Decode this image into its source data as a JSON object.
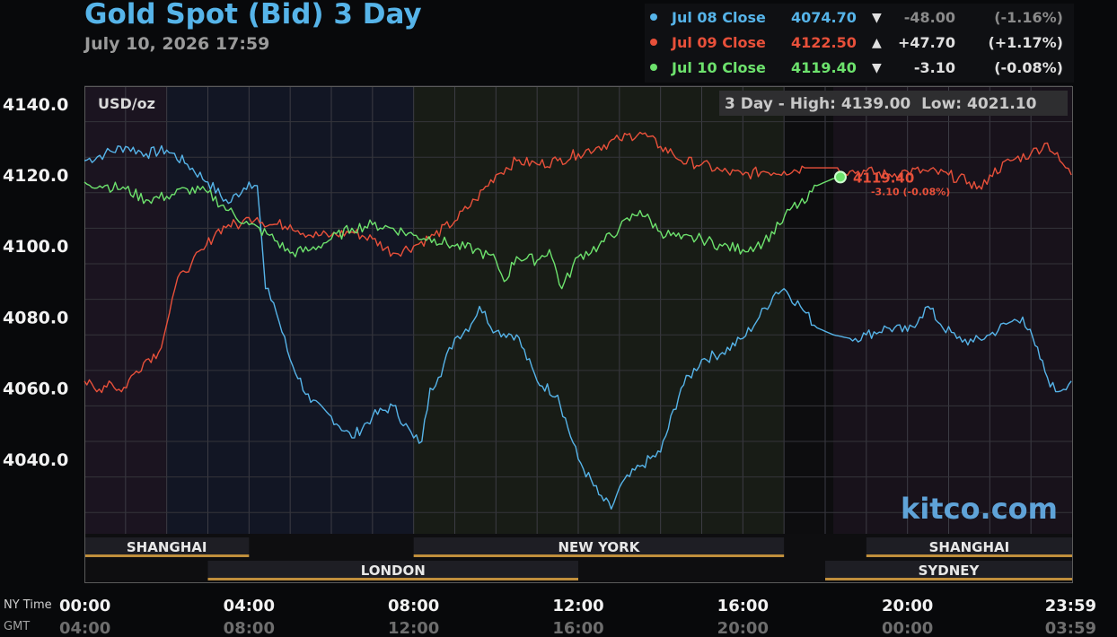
{
  "header": {
    "title": "Gold Spot (Bid) 3 Day",
    "subtitle": "July 10, 2026 17:59"
  },
  "legend": [
    {
      "label": "Jul 08 Close",
      "value": "4074.70",
      "arrow": "▼",
      "change": "-48.00",
      "pct": "(-1.16%)",
      "color": "#56b4e9",
      "muted": true
    },
    {
      "label": "Jul 09 Close",
      "value": "4122.50",
      "arrow": "▲",
      "change": "+47.70",
      "pct": "(+1.17%)",
      "color": "#e8503a",
      "muted": false
    },
    {
      "label": "Jul 10 Close",
      "value": "4119.40",
      "arrow": "▼",
      "change": "-3.10",
      "pct": "(-0.08%)",
      "color": "#6de26d",
      "muted": false
    }
  ],
  "chart_data": {
    "type": "line",
    "unit_label": "USD/oz",
    "range_label": "3 Day - High: 4139.00  Low: 4021.10",
    "watermark": "kitco.com",
    "last_label": "4119.40",
    "last_change": "-3.10 (-0.08%)",
    "ylim": [
      4019,
      4145
    ],
    "yticks": [
      4140,
      4120,
      4100,
      4080,
      4060,
      4040
    ],
    "ytick_labels": [
      "4140.0",
      "4120.0",
      "4100.0",
      "4080.0",
      "4060.0",
      "4040.0"
    ],
    "xlim": [
      0,
      24
    ],
    "xticks": [
      0,
      4,
      8,
      12,
      16,
      20,
      23.983
    ],
    "ny_time_label": "NY Time",
    "gmt_label": "GMT",
    "ny_labels": [
      "00:00",
      "04:00",
      "08:00",
      "12:00",
      "16:00",
      "20:00",
      "23:59"
    ],
    "gmt_labels": [
      "04:00",
      "08:00",
      "12:00",
      "16:00",
      "20:00",
      "00:00",
      "03:59"
    ],
    "sessions": [
      {
        "name": "SHANGHAI",
        "start": 0,
        "end": 4,
        "row": 0
      },
      {
        "name": "NEW YORK",
        "start": 8,
        "end": 17,
        "row": 0
      },
      {
        "name": "SHANGHAI",
        "start": 19,
        "end": 24,
        "row": 0
      },
      {
        "name": "LONDON",
        "start": 3,
        "end": 12,
        "row": 1
      },
      {
        "name": "SYDNEY",
        "start": 18,
        "end": 24,
        "row": 1
      }
    ],
    "series": [
      {
        "name": "Jul 08 Close",
        "color": "#56b4e9",
        "points": [
          [
            0,
            4124
          ],
          [
            0.5,
            4126
          ],
          [
            1,
            4128
          ],
          [
            1.5,
            4126
          ],
          [
            2,
            4127
          ],
          [
            2.5,
            4123
          ],
          [
            3,
            4118
          ],
          [
            3.5,
            4112
          ],
          [
            4,
            4118
          ],
          [
            4.2,
            4117
          ],
          [
            4.4,
            4088
          ],
          [
            4.6,
            4084
          ],
          [
            5,
            4068
          ],
          [
            5.5,
            4056
          ],
          [
            6,
            4052
          ],
          [
            6.5,
            4046
          ],
          [
            7,
            4052
          ],
          [
            7.5,
            4055
          ],
          [
            8,
            4046
          ],
          [
            8.2,
            4045
          ],
          [
            8.4,
            4060
          ],
          [
            8.6,
            4063
          ],
          [
            9,
            4074
          ],
          [
            9.4,
            4078
          ],
          [
            9.6,
            4083
          ],
          [
            10,
            4076
          ],
          [
            10.5,
            4075
          ],
          [
            11,
            4062
          ],
          [
            11.5,
            4058
          ],
          [
            12,
            4040
          ],
          [
            12.5,
            4030
          ],
          [
            12.8,
            4026
          ],
          [
            13,
            4032
          ],
          [
            13.5,
            4038
          ],
          [
            14,
            4042
          ],
          [
            14.5,
            4060
          ],
          [
            15,
            4068
          ],
          [
            15.5,
            4070
          ],
          [
            16,
            4074
          ],
          [
            16.4,
            4080
          ],
          [
            16.8,
            4087
          ],
          [
            17,
            4088
          ],
          [
            17.4,
            4083
          ],
          [
            17.8,
            4077
          ],
          [
            18.2,
            4075
          ],
          [
            18.6,
            4074
          ],
          [
            19,
            4075
          ],
          [
            19.5,
            4077
          ],
          [
            20,
            4076
          ],
          [
            20.3,
            4080
          ],
          [
            20.5,
            4083
          ],
          [
            20.8,
            4078
          ],
          [
            21.2,
            4074
          ],
          [
            21.6,
            4073
          ],
          [
            22,
            4075
          ],
          [
            22.4,
            4078
          ],
          [
            22.8,
            4080
          ],
          [
            23.1,
            4072
          ],
          [
            23.4,
            4063
          ],
          [
            23.6,
            4059
          ],
          [
            23.98,
            4062
          ]
        ]
      },
      {
        "name": "Jul 09 Close",
        "color": "#e8503a",
        "points": [
          [
            0,
            4062
          ],
          [
            0.3,
            4059
          ],
          [
            0.6,
            4062
          ],
          [
            0.9,
            4059
          ],
          [
            1.2,
            4064
          ],
          [
            1.5,
            4068
          ],
          [
            1.8,
            4070
          ],
          [
            2,
            4078
          ],
          [
            2.2,
            4088
          ],
          [
            2.4,
            4093
          ],
          [
            2.6,
            4095
          ],
          [
            2.9,
            4099
          ],
          [
            3.2,
            4104
          ],
          [
            3.5,
            4106
          ],
          [
            3.8,
            4106
          ],
          [
            4,
            4108
          ],
          [
            4.2,
            4108
          ],
          [
            4.5,
            4106
          ],
          [
            5,
            4106
          ],
          [
            5.5,
            4103
          ],
          [
            6,
            4103
          ],
          [
            6.5,
            4104
          ],
          [
            7,
            4102
          ],
          [
            7.5,
            4098
          ],
          [
            8,
            4100
          ],
          [
            8.5,
            4103
          ],
          [
            9,
            4107
          ],
          [
            9.5,
            4113
          ],
          [
            10,
            4120
          ],
          [
            10.5,
            4124
          ],
          [
            11,
            4123
          ],
          [
            11.5,
            4124
          ],
          [
            12,
            4126
          ],
          [
            12.5,
            4128
          ],
          [
            13,
            4130
          ],
          [
            13.5,
            4132
          ],
          [
            14,
            4128
          ],
          [
            14.3,
            4126
          ],
          [
            14.5,
            4124
          ],
          [
            15,
            4123
          ],
          [
            15.5,
            4121
          ],
          [
            16,
            4120
          ],
          [
            16.5,
            4121
          ],
          [
            17,
            4121
          ],
          [
            17.5,
            4122
          ],
          [
            18,
            4122
          ],
          [
            18.3,
            4122
          ],
          [
            18.6,
            4121
          ],
          [
            19,
            4121
          ],
          [
            19.5,
            4120
          ],
          [
            20,
            4121
          ],
          [
            20.5,
            4121
          ],
          [
            21,
            4120
          ],
          [
            21.5,
            4118
          ],
          [
            21.8,
            4116
          ],
          [
            22,
            4120
          ],
          [
            22.5,
            4124
          ],
          [
            23,
            4126
          ],
          [
            23.4,
            4129
          ],
          [
            23.7,
            4124
          ],
          [
            23.98,
            4120
          ]
        ]
      },
      {
        "name": "Jul 10 Close",
        "color": "#6de26d",
        "points": [
          [
            0,
            4118
          ],
          [
            0.5,
            4117
          ],
          [
            1,
            4116
          ],
          [
            1.5,
            4113
          ],
          [
            2,
            4114
          ],
          [
            2.5,
            4116
          ],
          [
            3,
            4115
          ],
          [
            3.5,
            4110
          ],
          [
            4,
            4106
          ],
          [
            4.5,
            4103
          ],
          [
            5,
            4098
          ],
          [
            5.5,
            4099
          ],
          [
            6,
            4102
          ],
          [
            6.5,
            4105
          ],
          [
            7,
            4106
          ],
          [
            7.5,
            4105
          ],
          [
            8,
            4103
          ],
          [
            8.5,
            4102
          ],
          [
            9,
            4100
          ],
          [
            9.5,
            4099
          ],
          [
            10,
            4096
          ],
          [
            10.2,
            4090
          ],
          [
            10.5,
            4097
          ],
          [
            11,
            4096
          ],
          [
            11.3,
            4099
          ],
          [
            11.6,
            4088
          ],
          [
            12,
            4097
          ],
          [
            12.5,
            4100
          ],
          [
            13,
            4105
          ],
          [
            13.5,
            4110
          ],
          [
            14,
            4104
          ],
          [
            14.5,
            4102
          ],
          [
            15,
            4102
          ],
          [
            15.5,
            4100
          ],
          [
            16,
            4099
          ],
          [
            16.5,
            4101
          ],
          [
            16.9,
            4106
          ],
          [
            17.2,
            4111
          ],
          [
            17.5,
            4112
          ],
          [
            17.8,
            4117
          ],
          [
            18.2,
            4119
          ],
          [
            18.37,
            4119.4
          ]
        ]
      }
    ]
  }
}
